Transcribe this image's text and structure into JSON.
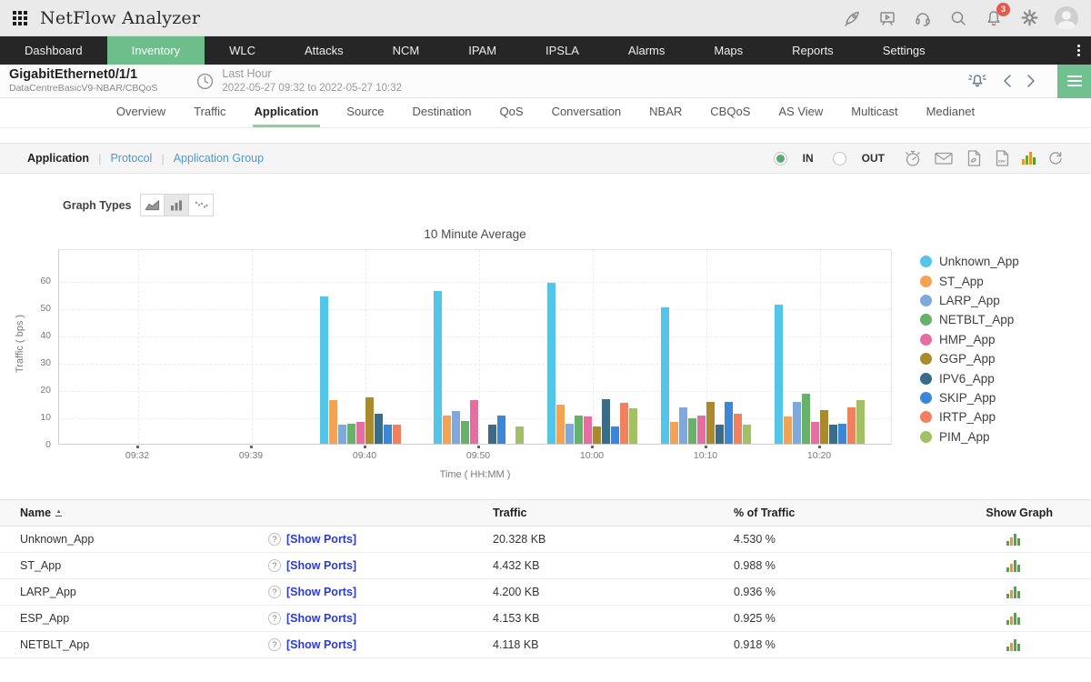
{
  "header": {
    "app_title": "NetFlow Analyzer",
    "notification_count": "3"
  },
  "nav": {
    "items": [
      "Dashboard",
      "Inventory",
      "WLC",
      "Attacks",
      "NCM",
      "IPAM",
      "IPSLA",
      "Alarms",
      "Maps",
      "Reports",
      "Settings"
    ],
    "active": "Inventory"
  },
  "subheader": {
    "interface_name": "GigabitEthernet0/1/1",
    "device_name": "DataCentreBasicV9-NBAR/CBQoS",
    "time_range_label": "Last Hour",
    "time_range": "2022-05-27 09:32 to 2022-05-27 10:32"
  },
  "tabs": {
    "items": [
      "Overview",
      "Traffic",
      "Application",
      "Source",
      "Destination",
      "QoS",
      "Conversation",
      "NBAR",
      "CBQoS",
      "AS View",
      "Multicast",
      "Medianet"
    ],
    "active": "Application"
  },
  "filter": {
    "views": [
      "Application",
      "Protocol",
      "Application Group"
    ],
    "active_view": "Application",
    "in_label": "IN",
    "out_label": "OUT",
    "selected_direction": "IN"
  },
  "graph_types_label": "Graph Types",
  "chart_data": {
    "type": "bar",
    "title": "10 Minute Average",
    "xlabel": "Time ( HH:MM )",
    "ylabel": "Traffic ( bps )",
    "ylim": [
      0,
      71
    ],
    "yticks": [
      0,
      10,
      20,
      30,
      40,
      50,
      60
    ],
    "grid": true,
    "legend_position": "right",
    "categories": [
      "09:32",
      "09:39",
      "09:40",
      "09:50",
      "10:00",
      "10:10",
      "10:20"
    ],
    "series": [
      {
        "name": "Unknown_App",
        "color": "#53c5e8",
        "values": [
          0,
          0,
          54,
          56,
          59,
          50,
          51
        ]
      },
      {
        "name": "ST_App",
        "color": "#f2a454",
        "values": [
          0,
          0,
          16,
          10.5,
          14.5,
          8,
          10
        ]
      },
      {
        "name": "LARP_App",
        "color": "#7fa8dc",
        "values": [
          0,
          0,
          7,
          12,
          7.5,
          13.5,
          15.5
        ]
      },
      {
        "name": "NETBLT_App",
        "color": "#67b168",
        "values": [
          0,
          0,
          7.5,
          8.5,
          10.5,
          9.5,
          18.5
        ]
      },
      {
        "name": "HMP_App",
        "color": "#e56da2",
        "values": [
          0,
          0,
          8,
          16,
          10,
          10.5,
          8
        ]
      },
      {
        "name": "GGP_App",
        "color": "#a98b2d",
        "values": [
          0,
          0,
          17,
          0,
          6.5,
          15.5,
          12.5
        ]
      },
      {
        "name": "IPV6_App",
        "color": "#3a6b88",
        "values": [
          0,
          0,
          11,
          7,
          16.5,
          7,
          7
        ]
      },
      {
        "name": "SKIP_App",
        "color": "#3c86d8",
        "values": [
          0,
          0,
          7,
          10.5,
          6.5,
          15.5,
          7.5
        ]
      },
      {
        "name": "IRTP_App",
        "color": "#f0805e",
        "values": [
          0,
          0,
          7,
          0,
          15,
          11,
          13.5
        ]
      },
      {
        "name": "PIM_App",
        "color": "#a2c064",
        "values": [
          0,
          0,
          0,
          6.5,
          13,
          7,
          16
        ]
      }
    ]
  },
  "table": {
    "columns": [
      "Name",
      "Traffic",
      "% of Traffic",
      "Show Graph"
    ],
    "show_ports_label": "[Show Ports]",
    "qmark": "?",
    "rows": [
      {
        "name": "Unknown_App",
        "traffic": "20.328 KB",
        "percent": "4.530 %"
      },
      {
        "name": "ST_App",
        "traffic": "4.432 KB",
        "percent": "0.988 %"
      },
      {
        "name": "LARP_App",
        "traffic": "4.200 KB",
        "percent": "0.936 %"
      },
      {
        "name": "ESP_App",
        "traffic": "4.153 KB",
        "percent": "0.925 %"
      },
      {
        "name": "NETBLT_App",
        "traffic": "4.118 KB",
        "percent": "0.918 %"
      }
    ]
  },
  "colors": {
    "accent_green": "#6dbe8b",
    "nav_bg": "#262626",
    "link_blue": "#4a9bd5",
    "show_ports_blue": "#2b3bd7",
    "badge_red": "#e8574c"
  }
}
